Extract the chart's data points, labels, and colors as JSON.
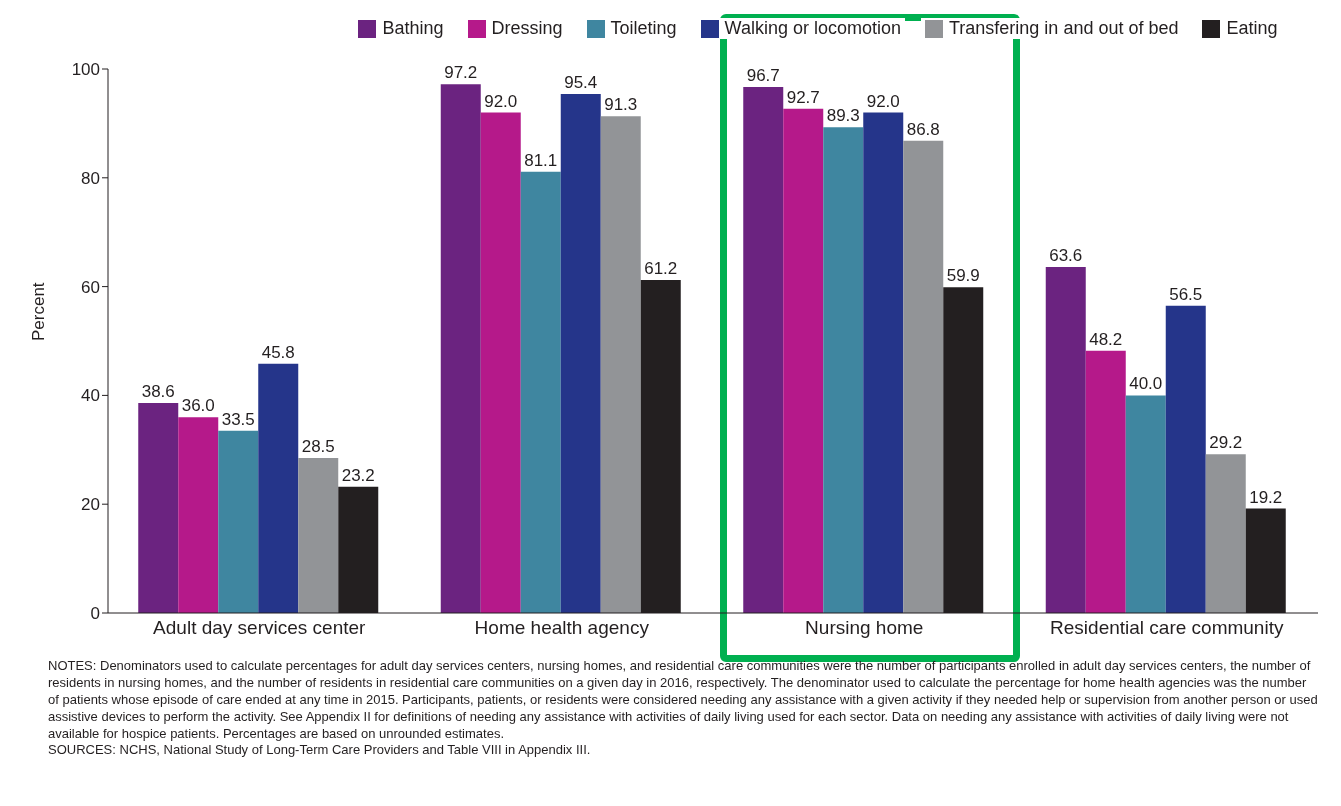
{
  "chart_data": {
    "type": "bar",
    "ylabel": "Percent",
    "categories": [
      "Adult day services center",
      "Home health agency",
      "Nursing home",
      "Residential care community"
    ],
    "series": [
      {
        "name": "Bathing",
        "color": "#6b2380",
        "values": [
          38.6,
          97.2,
          96.7,
          63.6
        ],
        "value_labels": [
          "38.6",
          "97.2",
          "96.7",
          "63.6"
        ]
      },
      {
        "name": "Dressing",
        "color": "#b5198a",
        "values": [
          36.0,
          92.0,
          92.7,
          48.2
        ],
        "value_labels": [
          "36.0",
          "92.0",
          "92.7",
          "48.2"
        ]
      },
      {
        "name": "Toileting",
        "color": "#3f86a0",
        "values": [
          33.5,
          81.1,
          89.3,
          40.0
        ],
        "value_labels": [
          "33.5",
          "81.1",
          "89.3",
          "40.0"
        ]
      },
      {
        "name": "Walking or locomotion",
        "color": "#25358a",
        "values": [
          45.8,
          95.4,
          92.0,
          56.5
        ],
        "value_labels": [
          "45.8",
          "95.4",
          "92.0",
          "56.5"
        ]
      },
      {
        "name": "Transfering in and out of bed",
        "color": "#929497",
        "values": [
          28.5,
          91.3,
          86.8,
          29.2
        ],
        "value_labels": [
          "28.5",
          "91.3",
          "86.8",
          "29.2"
        ]
      },
      {
        "name": "Eating",
        "color": "#231f20",
        "values": [
          23.2,
          61.2,
          59.9,
          19.2
        ],
        "value_labels": [
          "23.2",
          "61.2",
          "59.9",
          "19.2"
        ]
      }
    ],
    "ylim": [
      0,
      100
    ],
    "yticks": [
      0,
      20,
      40,
      60,
      80,
      100
    ],
    "grid": false,
    "legend": "top",
    "annotations": [
      "NOTES: Denominators used to calculate percentages for adult day services centers, nursing homes, and residential care communities were the number of participants enrolled in adult day services centers, the number of residents in nursing homes, and the number of residents in residential care communities on a given day in 2016, respectively. The denominator used to calculate the percentage for home health agencies was the number of patients whose episode of care ended at any time in 2015. Participants, patients, or residents were considered needing any assistance with a given activity if they needed help or supervision from another person or used assistive devices to perform the activity. See Appendix II for definitions of needing any assistance with activities of daily living used for each sector. Data on needing any assistance with activities of daily living were not available for hospice patients. Percentages are based on unrounded estimates.",
      "SOURCES: NCHS, National Study of Long-Term Care Providers and Table VIII in Appendix III."
    ]
  }
}
